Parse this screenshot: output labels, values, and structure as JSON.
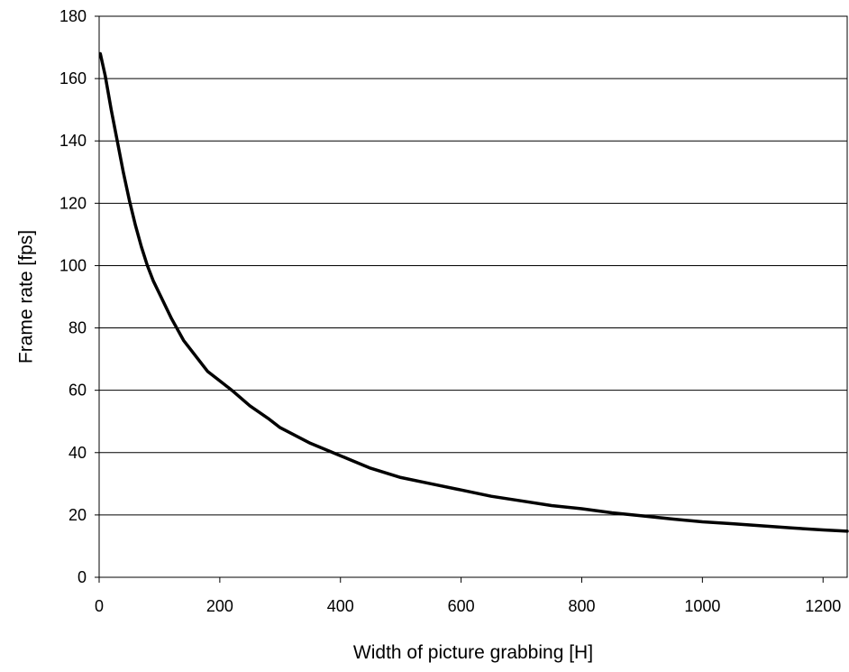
{
  "chart_data": {
    "type": "line",
    "title": "",
    "xlabel": "Width of picture grabbing [H]",
    "ylabel": "Frame rate [fps]",
    "xlim": [
      0,
      1240
    ],
    "ylim": [
      0,
      180
    ],
    "xticks": [
      0,
      200,
      400,
      600,
      800,
      1000,
      1200
    ],
    "yticks": [
      0,
      20,
      40,
      60,
      80,
      100,
      120,
      140,
      160,
      180
    ],
    "grid": "horizontal",
    "legend": "none",
    "line_color": "#000000",
    "series": [
      {
        "x": [
          2,
          10,
          20,
          30,
          40,
          50,
          60,
          70,
          80,
          90,
          100,
          120,
          140,
          160,
          180,
          200,
          220,
          250,
          280,
          300,
          350,
          400,
          450,
          500,
          550,
          600,
          650,
          700,
          750,
          800,
          850,
          900,
          950,
          1000,
          1050,
          1100,
          1150,
          1200,
          1240
        ],
        "y": [
          168,
          161,
          150,
          140,
          130,
          121,
          113,
          106,
          100,
          95,
          91,
          83,
          76,
          71,
          66,
          63,
          60,
          55,
          51,
          48,
          43,
          39,
          35,
          32,
          30,
          28,
          26,
          24.5,
          23,
          22,
          20.7,
          19.7,
          18.7,
          17.8,
          17.2,
          16.5,
          15.8,
          15.2,
          14.8
        ]
      }
    ]
  }
}
